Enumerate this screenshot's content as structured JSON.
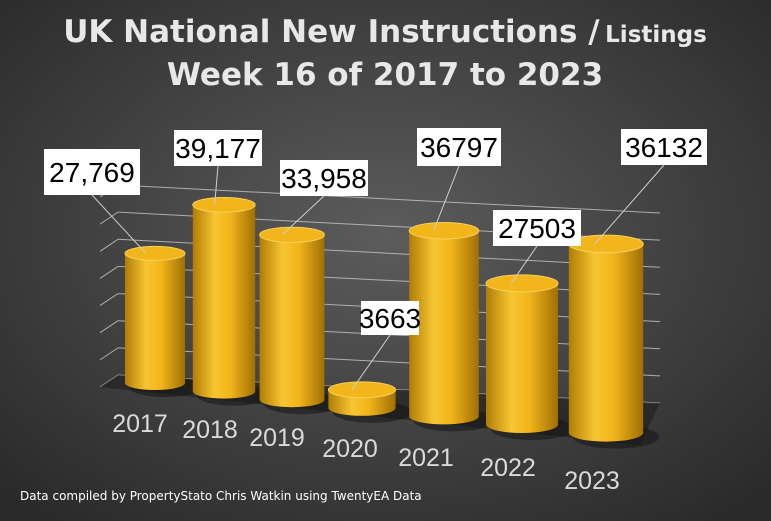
{
  "chart_data": {
    "type": "bar",
    "title": [
      "UK National New Instructions /",
      "Listings"
    ],
    "subtitle": "Week 16 of 2017 to 2023",
    "categories": [
      "2017",
      "2018",
      "2019",
      "2020",
      "2021",
      "2022",
      "2023"
    ],
    "values": [
      27769,
      39177,
      33958,
      3663,
      36797,
      27503,
      36132
    ],
    "value_labels": [
      "27,769",
      "39,177",
      "33,958",
      "3663",
      "36797",
      "27503",
      "36132"
    ],
    "color": "#f2b51c",
    "ylim": [
      0,
      45000
    ],
    "grid": true,
    "footnote": "Data compiled by PropertyStato Chris Watkin using TwentyEA Data"
  }
}
